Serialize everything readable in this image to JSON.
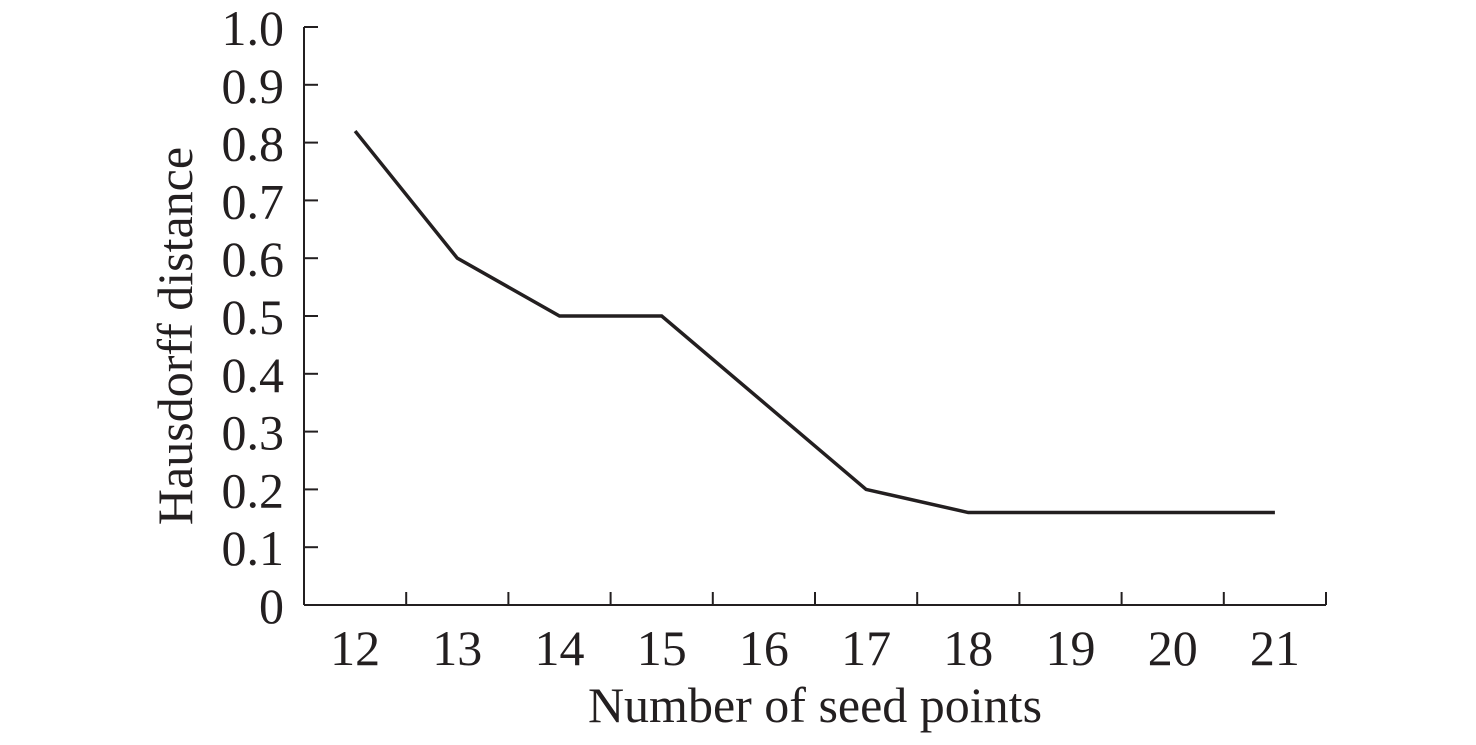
{
  "chart_data": {
    "type": "line",
    "title": "",
    "xlabel": "Number of seed points",
    "ylabel": "Hausdorff distance",
    "categories": [
      "12",
      "13",
      "14",
      "15",
      "16",
      "17",
      "18",
      "19",
      "20",
      "21"
    ],
    "series": [
      {
        "values": [
          0.82,
          0.6,
          0.5,
          0.5,
          0.35,
          0.2,
          0.16,
          0.16,
          0.16,
          0.16
        ]
      }
    ],
    "ylim": [
      0,
      1.0
    ],
    "yticks": [
      "0",
      "0.1",
      "0.2",
      "0.3",
      "0.4",
      "0.5",
      "0.6",
      "0.7",
      "0.8",
      "0.9",
      "1.0"
    ],
    "grid": false,
    "legend": "none",
    "colors": {
      "line": "#231f20",
      "axis": "#231f20"
    }
  }
}
